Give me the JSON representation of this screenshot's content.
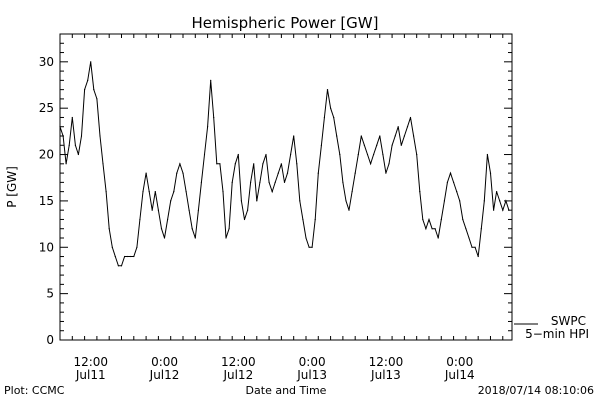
{
  "chart_data": {
    "type": "line",
    "title": "Hemispheric Power [GW]",
    "ylabel": "P [GW]",
    "xlabel": "Date and Time",
    "ylim": [
      0,
      33
    ],
    "yticks": [
      0,
      5,
      10,
      15,
      20,
      25,
      30
    ],
    "xlim": [
      "2018-07-11T07:00",
      "2018-07-14T08:30"
    ],
    "xticks": [
      {
        "t": "2018-07-11T12:00",
        "time": "12:00",
        "date": "Jul11"
      },
      {
        "t": "2018-07-12T00:00",
        "time": "0:00",
        "date": "Jul12"
      },
      {
        "t": "2018-07-12T12:00",
        "time": "12:00",
        "date": "Jul12"
      },
      {
        "t": "2018-07-13T00:00",
        "time": "0:00",
        "date": "Jul13"
      },
      {
        "t": "2018-07-13T12:00",
        "time": "12:00",
        "date": "Jul13"
      },
      {
        "t": "2018-07-14T00:00",
        "time": "0:00",
        "date": "Jul14"
      }
    ],
    "grid": false,
    "legend_position": "bottom-right",
    "series": [
      {
        "name": "SWPC",
        "color": "#000000",
        "x": [
          "2018-07-11T07:00",
          "2018-07-11T07:30",
          "2018-07-11T08:00",
          "2018-07-11T08:30",
          "2018-07-11T09:00",
          "2018-07-11T09:30",
          "2018-07-11T10:00",
          "2018-07-11T10:30",
          "2018-07-11T11:00",
          "2018-07-11T11:30",
          "2018-07-11T12:00",
          "2018-07-11T12:30",
          "2018-07-11T13:00",
          "2018-07-11T13:30",
          "2018-07-11T14:00",
          "2018-07-11T14:30",
          "2018-07-11T15:00",
          "2018-07-11T15:30",
          "2018-07-11T16:00",
          "2018-07-11T16:30",
          "2018-07-11T17:00",
          "2018-07-11T17:30",
          "2018-07-11T18:00",
          "2018-07-11T18:30",
          "2018-07-11T19:00",
          "2018-07-11T19:30",
          "2018-07-11T20:00",
          "2018-07-11T20:30",
          "2018-07-11T21:00",
          "2018-07-11T21:30",
          "2018-07-11T22:00",
          "2018-07-11T22:30",
          "2018-07-11T23:00",
          "2018-07-11T23:30",
          "2018-07-12T00:00",
          "2018-07-12T00:30",
          "2018-07-12T01:00",
          "2018-07-12T01:30",
          "2018-07-12T02:00",
          "2018-07-12T02:30",
          "2018-07-12T03:00",
          "2018-07-12T03:30",
          "2018-07-12T04:00",
          "2018-07-12T04:30",
          "2018-07-12T05:00",
          "2018-07-12T05:30",
          "2018-07-12T06:00",
          "2018-07-12T06:30",
          "2018-07-12T07:00",
          "2018-07-12T07:30",
          "2018-07-12T08:00",
          "2018-07-12T08:30",
          "2018-07-12T09:00",
          "2018-07-12T09:30",
          "2018-07-12T10:00",
          "2018-07-12T10:30",
          "2018-07-12T11:00",
          "2018-07-12T11:30",
          "2018-07-12T12:00",
          "2018-07-12T12:30",
          "2018-07-12T13:00",
          "2018-07-12T13:30",
          "2018-07-12T14:00",
          "2018-07-12T14:30",
          "2018-07-12T15:00",
          "2018-07-12T15:30",
          "2018-07-12T16:00",
          "2018-07-12T16:30",
          "2018-07-12T17:00",
          "2018-07-12T17:30",
          "2018-07-12T18:00",
          "2018-07-12T18:30",
          "2018-07-12T19:00",
          "2018-07-12T19:30",
          "2018-07-12T20:00",
          "2018-07-12T20:30",
          "2018-07-12T21:00",
          "2018-07-12T21:30",
          "2018-07-12T22:00",
          "2018-07-12T22:30",
          "2018-07-12T23:00",
          "2018-07-12T23:30",
          "2018-07-13T00:00",
          "2018-07-13T00:30",
          "2018-07-13T01:00",
          "2018-07-13T01:30",
          "2018-07-13T02:00",
          "2018-07-13T02:30",
          "2018-07-13T03:00",
          "2018-07-13T03:30",
          "2018-07-13T04:00",
          "2018-07-13T04:30",
          "2018-07-13T05:00",
          "2018-07-13T05:30",
          "2018-07-13T06:00",
          "2018-07-13T06:30",
          "2018-07-13T07:00",
          "2018-07-13T07:30",
          "2018-07-13T08:00",
          "2018-07-13T08:30",
          "2018-07-13T09:00",
          "2018-07-13T09:30",
          "2018-07-13T10:00",
          "2018-07-13T10:30",
          "2018-07-13T11:00",
          "2018-07-13T11:30",
          "2018-07-13T12:00",
          "2018-07-13T12:30",
          "2018-07-13T13:00",
          "2018-07-13T13:30",
          "2018-07-13T14:00",
          "2018-07-13T14:30",
          "2018-07-13T15:00",
          "2018-07-13T15:30",
          "2018-07-13T16:00",
          "2018-07-13T16:30",
          "2018-07-13T17:00",
          "2018-07-13T17:30",
          "2018-07-13T18:00",
          "2018-07-13T18:30",
          "2018-07-13T19:00",
          "2018-07-13T19:30",
          "2018-07-13T20:00",
          "2018-07-13T20:30",
          "2018-07-13T21:00",
          "2018-07-13T21:30",
          "2018-07-13T22:00",
          "2018-07-13T22:30",
          "2018-07-13T23:00",
          "2018-07-13T23:30",
          "2018-07-14T00:00",
          "2018-07-14T00:30",
          "2018-07-14T01:00",
          "2018-07-14T01:30",
          "2018-07-14T02:00",
          "2018-07-14T02:30",
          "2018-07-14T03:00",
          "2018-07-14T03:30",
          "2018-07-14T04:00",
          "2018-07-14T04:30",
          "2018-07-14T05:00",
          "2018-07-14T05:30",
          "2018-07-14T06:00",
          "2018-07-14T06:30",
          "2018-07-14T07:00",
          "2018-07-14T07:30",
          "2018-07-14T08:00"
        ],
        "y": [
          23,
          22,
          19,
          21,
          24,
          21,
          20,
          22,
          27,
          28,
          30,
          27,
          26,
          22,
          19,
          16,
          12,
          10,
          9,
          8,
          8,
          9,
          9,
          9,
          9,
          10,
          13,
          16,
          18,
          16,
          14,
          16,
          14,
          12,
          11,
          13,
          15,
          16,
          18,
          19,
          18,
          16,
          14,
          12,
          11,
          14,
          17,
          20,
          23,
          28,
          24,
          19,
          19,
          16,
          11,
          12,
          17,
          19,
          20,
          15,
          13,
          14,
          17,
          19,
          15,
          17,
          19,
          20,
          17,
          16,
          17,
          18,
          19,
          17,
          18,
          20,
          22,
          19,
          15,
          13,
          11,
          10,
          10,
          13,
          18,
          21,
          24,
          27,
          25,
          24,
          22,
          20,
          17,
          15,
          14,
          16,
          18,
          20,
          22,
          21,
          20,
          19,
          20,
          21,
          22,
          20,
          18,
          19,
          21,
          22,
          23,
          21,
          22,
          23,
          24,
          22,
          20,
          16,
          13,
          12,
          13,
          12,
          12,
          11,
          13,
          15,
          17,
          18,
          17,
          16,
          15,
          13,
          12,
          11,
          10,
          10,
          9,
          12,
          15,
          20,
          18,
          14,
          16,
          15,
          14,
          15,
          14
        ]
      }
    ]
  },
  "legend": {
    "line1": "SWPC",
    "line2": "5−min HPI"
  },
  "footer": {
    "left": "Plot: CCMC",
    "center": "Date and Time",
    "right": "2018/07/14 08:10:06"
  }
}
